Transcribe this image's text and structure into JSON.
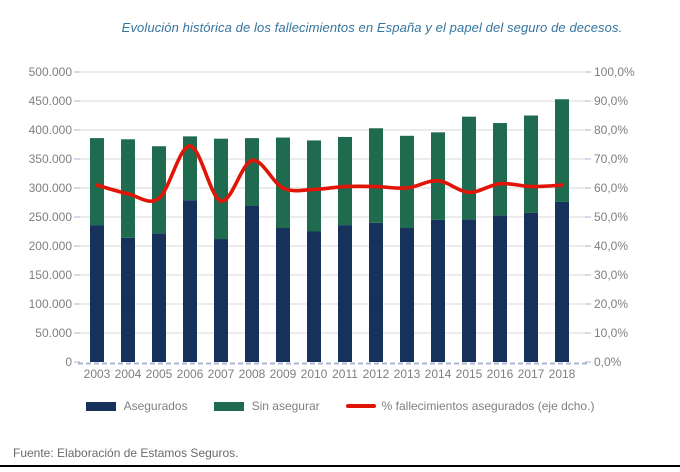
{
  "title": "Evolución histórica de los fallecimientos en España y el papel del seguro de decesos.",
  "footer": {
    "source": "Fuente: Elaboración de Estamos Seguros."
  },
  "legend": {
    "items": [
      {
        "label": "Asegurados",
        "swatch": "bar",
        "color": "#16325a"
      },
      {
        "label": "Sin asegurar",
        "swatch": "bar",
        "color": "#1e6b4f"
      },
      {
        "label": "% fallecimientos asegurados (eje dcho.)",
        "swatch": "line",
        "color": "#e01407"
      }
    ]
  },
  "chart_data": {
    "type": "bar",
    "subtype": "stacked-bars-with-line-combo",
    "categories": [
      "2003",
      "2004",
      "2005",
      "2006",
      "2007",
      "2008",
      "2009",
      "2010",
      "2011",
      "2012",
      "2013",
      "2014",
      "2015",
      "2016",
      "2017",
      "2018"
    ],
    "series": [
      {
        "name": "Asegurados",
        "type": "bar",
        "stack": "total",
        "axis": "left",
        "color": "#16325a",
        "values": [
          236000,
          214000,
          222000,
          279000,
          212000,
          269000,
          231000,
          225000,
          236000,
          240000,
          231000,
          245000,
          246000,
          253000,
          257000,
          276000
        ]
      },
      {
        "name": "Sin asegurar",
        "type": "bar",
        "stack": "total",
        "axis": "left",
        "color": "#1e6b4f",
        "values": [
          150000,
          170000,
          150000,
          110000,
          173000,
          117000,
          156000,
          157000,
          152000,
          163000,
          159000,
          151000,
          177000,
          159000,
          168000,
          177000
        ]
      },
      {
        "name": "% fallecimientos asegurados (eje dcho.)",
        "type": "line",
        "axis": "right",
        "color": "#e01407",
        "values": [
          61,
          58,
          56.5,
          74.5,
          55.5,
          69.5,
          60,
          59.5,
          60.5,
          60.5,
          60,
          62.5,
          58.5,
          61.5,
          60.5,
          61
        ]
      }
    ],
    "left_axis": {
      "min": 0,
      "max": 500000,
      "step": 50000,
      "tick_labels": [
        "0",
        "50.000",
        "100.000",
        "150.000",
        "200.000",
        "250.000",
        "300.000",
        "350.000",
        "400.000",
        "450.000",
        "500.000"
      ]
    },
    "right_axis": {
      "min": 0,
      "max": 100,
      "step": 10,
      "tick_labels": [
        "0,0%",
        "10,0%",
        "20,0%",
        "30,0%",
        "40,0%",
        "50,0%",
        "60,0%",
        "70,0%",
        "80,0%",
        "90,0%",
        "100,0%"
      ]
    },
    "grid": true,
    "legend_position": "bottom"
  },
  "colors": {
    "grid": "#d9d9d9",
    "axis_ticks": "#aab6d2",
    "labels": "#7f7f7f",
    "title": "#35749e",
    "rule": "#000000",
    "background": "#ffffff"
  }
}
